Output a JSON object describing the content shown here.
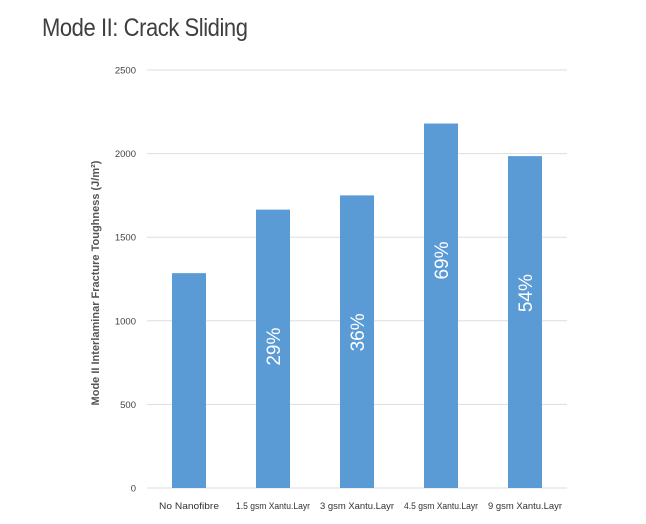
{
  "chart_data": {
    "type": "bar",
    "title": "Mode II: Crack Sliding",
    "ylabel": "Mode II Interlaminar Fracture Toughness (J/m²)",
    "xlabel": "",
    "ylim": [
      0,
      2500
    ],
    "yticks": [
      0,
      500,
      1000,
      1500,
      2000,
      2500
    ],
    "grid": true,
    "categories": [
      "No Nanofibre",
      "1.5 gsm Xantu.Layr",
      "3 gsm Xantu.Layr",
      "4.5 gsm Xantu.Layr",
      "9 gsm Xantu.Layr"
    ],
    "values": [
      1285,
      1665,
      1750,
      2180,
      1985
    ],
    "data_labels": [
      "",
      "29%",
      "36%",
      "69%",
      "54%"
    ],
    "bar_color": "#5b9bd5"
  }
}
